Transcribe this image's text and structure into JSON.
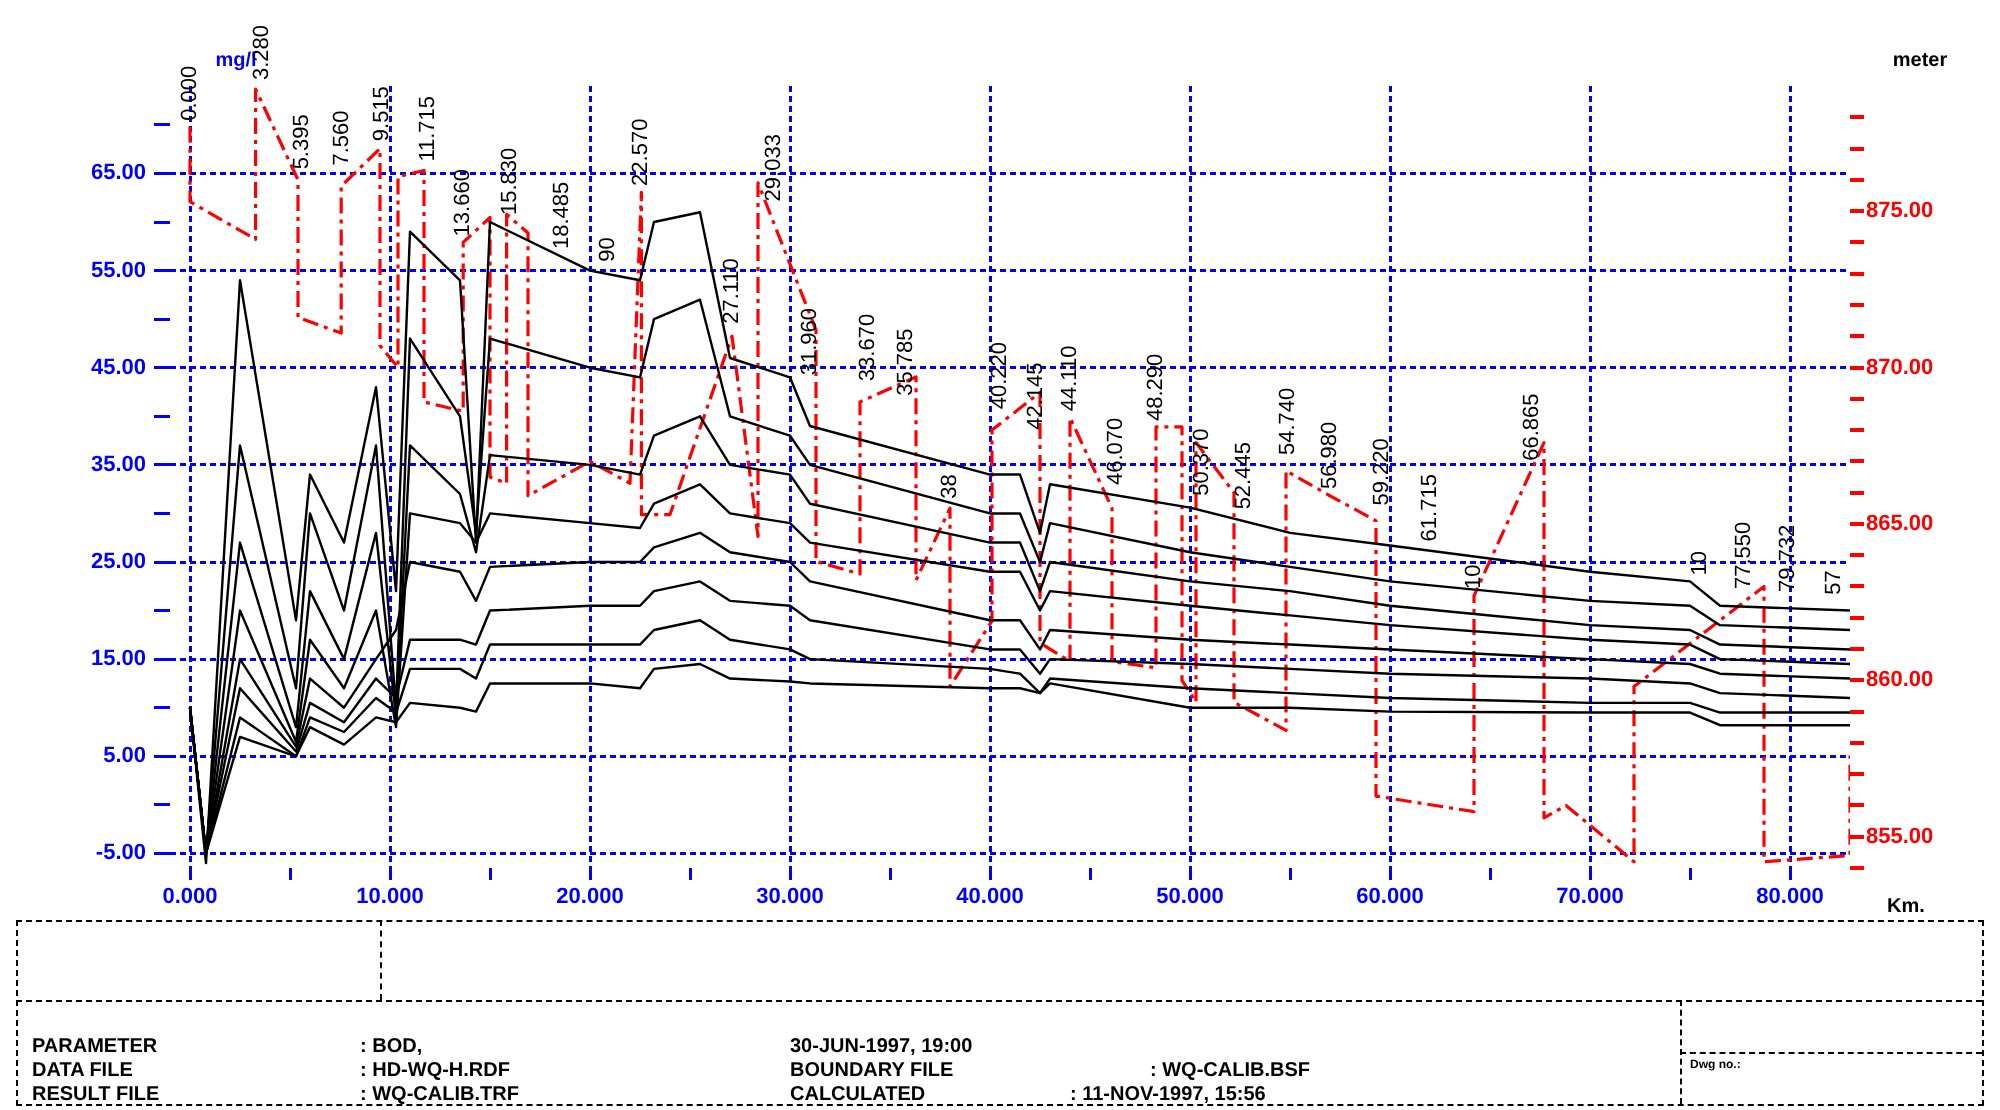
{
  "chart_data": {
    "type": "line",
    "xlabel": "Km.",
    "ylabel": "mg/l",
    "y2label": "meter",
    "grid": true,
    "marker": "none",
    "xlim": [
      -1,
      83
    ],
    "xticks": [
      {
        "value": 0,
        "label": "0.000"
      },
      {
        "value": 5,
        "label": null
      },
      {
        "value": 10,
        "label": "10.000"
      },
      {
        "value": 15,
        "label": null
      },
      {
        "value": 20,
        "label": "20.000"
      },
      {
        "value": 25,
        "label": null
      },
      {
        "value": 30,
        "label": "30.000"
      },
      {
        "value": 35,
        "label": null
      },
      {
        "value": 40,
        "label": "40.000"
      },
      {
        "value": 45,
        "label": null
      },
      {
        "value": 50,
        "label": "50.000"
      },
      {
        "value": 55,
        "label": null
      },
      {
        "value": 60,
        "label": "60.000"
      },
      {
        "value": 65,
        "label": null
      },
      {
        "value": 70,
        "label": "70.000"
      },
      {
        "value": 75,
        "label": null
      },
      {
        "value": 80,
        "label": "80.000"
      }
    ],
    "ylim": [
      -6.5,
      74
    ],
    "yticks": [
      {
        "value": -5,
        "label": "-5.00"
      },
      {
        "value": 0,
        "label": null
      },
      {
        "value": 5,
        "label": "5.00"
      },
      {
        "value": 10,
        "label": null
      },
      {
        "value": 15,
        "label": "15.00"
      },
      {
        "value": 20,
        "label": null
      },
      {
        "value": 25,
        "label": "25.00"
      },
      {
        "value": 30,
        "label": null
      },
      {
        "value": 35,
        "label": "35.00"
      },
      {
        "value": 40,
        "label": null
      },
      {
        "value": 45,
        "label": "45.00"
      },
      {
        "value": 50,
        "label": null
      },
      {
        "value": 55,
        "label": "55.00"
      },
      {
        "value": 60,
        "label": null
      },
      {
        "value": 65,
        "label": "65.00"
      },
      {
        "value": 70,
        "label": null
      }
    ],
    "y2lim": [
      854,
      879
    ],
    "y2ticks": [
      {
        "value": 854,
        "label": null
      },
      {
        "value": 855,
        "label": "855.00"
      },
      {
        "value": 856,
        "label": null
      },
      {
        "value": 857,
        "label": null
      },
      {
        "value": 858,
        "label": null
      },
      {
        "value": 859,
        "label": null
      },
      {
        "value": 860,
        "label": "860.00"
      },
      {
        "value": 861,
        "label": null
      },
      {
        "value": 862,
        "label": null
      },
      {
        "value": 863,
        "label": null
      },
      {
        "value": 864,
        "label": null
      },
      {
        "value": 865,
        "label": "865.00"
      },
      {
        "value": 866,
        "label": null
      },
      {
        "value": 867,
        "label": null
      },
      {
        "value": 868,
        "label": null
      },
      {
        "value": 869,
        "label": null
      },
      {
        "value": 870,
        "label": "870.00"
      },
      {
        "value": 871,
        "label": null
      },
      {
        "value": 872,
        "label": null
      },
      {
        "value": 873,
        "label": null
      },
      {
        "value": 874,
        "label": null
      },
      {
        "value": 875,
        "label": "875.00"
      },
      {
        "value": 876,
        "label": null
      },
      {
        "value": 877,
        "label": null
      },
      {
        "value": 878,
        "label": null
      }
    ],
    "x": [
      0,
      0.8,
      2.5,
      5.3,
      6,
      7.7,
      9.3,
      10.3,
      11,
      13.5,
      14.3,
      15,
      20,
      22.5,
      23.2,
      25.5,
      27,
      30,
      31,
      40,
      41.5,
      42.5,
      43,
      50,
      55,
      60,
      70,
      75,
      76.5,
      83
    ],
    "series": [
      {
        "color": "#000000",
        "values": [
          10,
          -6,
          54,
          19,
          34,
          27,
          43,
          22,
          59,
          54,
          27,
          60,
          55,
          54,
          60,
          61,
          46,
          44,
          39,
          34,
          34,
          28,
          33,
          30.6,
          28,
          26.7,
          24,
          23,
          20.5,
          20
        ]
      },
      {
        "color": "#000000",
        "values": [
          10,
          -5,
          37,
          12,
          30,
          20,
          37,
          10,
          48,
          40,
          28,
          48,
          45,
          44,
          50,
          52,
          40,
          38,
          35,
          30,
          30,
          25,
          29,
          26,
          24.5,
          23,
          21,
          20.5,
          18.5,
          18
        ]
      },
      {
        "color": "#000000",
        "values": [
          10,
          -5,
          27,
          8,
          22,
          15,
          28,
          9,
          37,
          32,
          26,
          36,
          35,
          34,
          38,
          40,
          35,
          34,
          31,
          27,
          27,
          22,
          25,
          23,
          22,
          20.5,
          18.5,
          18,
          16.5,
          16
        ]
      },
      {
        "color": "#000000",
        "values": [
          10,
          -5,
          20,
          6.5,
          17,
          12,
          20,
          8,
          30,
          29,
          27,
          30,
          29,
          28.5,
          31,
          33,
          30,
          29,
          27,
          24,
          24,
          20,
          22,
          20.5,
          19.5,
          18.5,
          17,
          16.5,
          15,
          14.5
        ]
      },
      {
        "color": "#000000",
        "values": [
          10,
          -5,
          15,
          6,
          13,
          10,
          15,
          18,
          25,
          24,
          21,
          24.5,
          25,
          25,
          26.5,
          28,
          26,
          25,
          23,
          19,
          19,
          16,
          18,
          17,
          16.5,
          16,
          15,
          14.5,
          13.5,
          13
        ]
      },
      {
        "color": "#000000",
        "values": [
          10,
          -5,
          12,
          5.5,
          10.5,
          8.5,
          13,
          11,
          17,
          17,
          16.5,
          20,
          20.5,
          20.5,
          22,
          23,
          21,
          20.5,
          19,
          16,
          16,
          13.5,
          15,
          14.5,
          14,
          13.5,
          13,
          12.5,
          11.5,
          11
        ]
      },
      {
        "color": "#000000",
        "values": [
          10,
          -5,
          9,
          5,
          9,
          7.5,
          11,
          9.5,
          14,
          14,
          13,
          16.5,
          16.5,
          16.5,
          18,
          19,
          17,
          16,
          15,
          14,
          13.5,
          11.5,
          13,
          12,
          11.5,
          11,
          10.5,
          10.5,
          9.5,
          9.5
        ]
      },
      {
        "color": "#000000",
        "values": [
          10,
          -5,
          7,
          5,
          8,
          6.2,
          9,
          8.5,
          10.5,
          10,
          9.6,
          12.5,
          12.5,
          12,
          14,
          14.5,
          13,
          12.7,
          12.5,
          12,
          12,
          11.5,
          12.5,
          10,
          10,
          9.6,
          9.5,
          9.5,
          8.2,
          8.2
        ]
      },
      {
        "type": "line",
        "axis": "y2",
        "color": "#ff0000",
        "line_style": "dashed",
        "x": [
          0,
          0,
          3.28,
          3.28,
          5.4,
          5.4,
          7.56,
          7.56,
          9.5,
          9.5,
          10.4,
          10.4,
          11.7,
          11.7,
          13.66,
          13.66,
          15,
          15,
          15.83,
          15.83,
          16.9,
          16.9,
          20,
          22,
          22.57,
          22.57,
          24,
          27.1,
          28.4,
          28.4,
          31.3,
          31.3,
          33.5,
          33.5,
          36.3,
          36.3,
          38,
          38,
          40.1,
          40.1,
          42.5,
          42.5,
          44,
          44,
          46.1,
          46.1,
          48.3,
          48.3,
          49.6,
          49.6,
          50.3,
          50.3,
          52.2,
          52.2,
          54.8,
          54.8,
          57,
          59.3,
          59.3,
          64.2,
          64.2,
          67.7,
          67.7,
          68.8,
          72.2,
          72.2,
          78.7,
          78.7,
          83,
          83
        ],
        "values": [
          877.7,
          875.3,
          874.1,
          878.9,
          876,
          871.6,
          871.1,
          875.8,
          877,
          870.7,
          870,
          876.1,
          876.3,
          868.9,
          868.6,
          874,
          874.8,
          866.5,
          866.3,
          874.9,
          874.3,
          865.9,
          867,
          866.3,
          875.6,
          865.3,
          865.3,
          871,
          864.6,
          875.9,
          871.2,
          863.8,
          863.4,
          868.9,
          869.7,
          863.2,
          865.5,
          859.8,
          861.9,
          868,
          869.2,
          861.2,
          860.6,
          868.4,
          865.5,
          860.6,
          860.4,
          868.1,
          868.1,
          860,
          859.3,
          867.6,
          866,
          859.3,
          858.4,
          866.7,
          865.9,
          865.1,
          856.3,
          855.8,
          862.7,
          867.6,
          855.6,
          856,
          854.2,
          859.8,
          863,
          854.2,
          854.4,
          857.6
        ]
      }
    ],
    "annotations": [
      {
        "text": "0.000",
        "x": 0,
        "y": 69.8
      },
      {
        "text": "3.280",
        "x": 3.6,
        "y": 74
      },
      {
        "text": "5.395",
        "x": 5.6,
        "y": 64.8
      },
      {
        "text": "7.560",
        "x": 7.6,
        "y": 65.2
      },
      {
        "text": "9.515",
        "x": 9.6,
        "y": 67.7
      },
      {
        "text": "11.715",
        "x": 11.9,
        "y": 65.6
      },
      {
        "text": "13.660",
        "x": 13.66,
        "y": 57.9
      },
      {
        "text": "15.830",
        "x": 16,
        "y": 60.1
      },
      {
        "text": "18.485",
        "x": 18.6,
        "y": 56.6
      },
      {
        "text": "90",
        "x": 20.9,
        "y": 55.3
      },
      {
        "text": "22.570",
        "x": 22.57,
        "y": 63.1
      },
      {
        "text": "27.110",
        "x": 27.1,
        "y": 48.9
      },
      {
        "text": "29.033",
        "x": 29.2,
        "y": 61.5
      },
      {
        "text": "31.960",
        "x": 31,
        "y": 43.6
      },
      {
        "text": "33.670",
        "x": 33.9,
        "y": 43
      },
      {
        "text": "35.785",
        "x": 35.8,
        "y": 41.5
      },
      {
        "text": "38",
        "x": 38,
        "y": 30.9
      },
      {
        "text": "40.220",
        "x": 40.5,
        "y": 40.1
      },
      {
        "text": "42.145",
        "x": 42.3,
        "y": 38
      },
      {
        "text": "44.110",
        "x": 44,
        "y": 39.9
      },
      {
        "text": "46.070",
        "x": 46.3,
        "y": 32.3
      },
      {
        "text": "48.290",
        "x": 48.3,
        "y": 38.9
      },
      {
        "text": "50.370",
        "x": 50.6,
        "y": 31.2
      },
      {
        "text": "52.445",
        "x": 52.7,
        "y": 29.8
      },
      {
        "text": "54.740",
        "x": 54.9,
        "y": 35.4
      },
      {
        "text": "56.980",
        "x": 57,
        "y": 31.9
      },
      {
        "text": "59.220",
        "x": 59.6,
        "y": 30.2
      },
      {
        "text": "61.715",
        "x": 62,
        "y": 26.5
      },
      {
        "text": "10",
        "x": 64.2,
        "y": 21.6
      },
      {
        "text": "66.865",
        "x": 67.1,
        "y": 34.8
      },
      {
        "text": "10",
        "x": 75.5,
        "y": 23
      },
      {
        "text": "77.550",
        "x": 77.7,
        "y": 21.6
      },
      {
        "text": "79.732",
        "x": 79.9,
        "y": 21.3
      },
      {
        "text": "57",
        "x": 82.2,
        "y": 21
      },
      "PARAMETER",
      ": BOD,",
      "30-JUN-1997, 19:00",
      "DATA FILE",
      ": HD-WQ-H.RDF",
      "BOUNDARY FILE",
      ": WQ-CALIB.BSF",
      "RESULT FILE",
      ": WQ-CALIB.TRF",
      "CALCULATED",
      ": 11-NOV-1997, 15:56",
      "Dwg no.:"
    ]
  }
}
